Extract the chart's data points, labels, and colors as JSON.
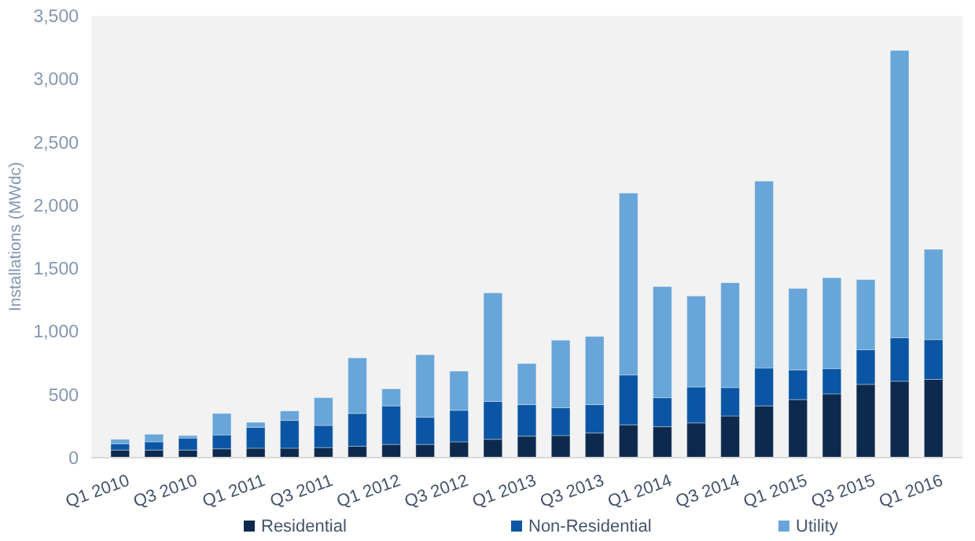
{
  "chart_data": {
    "type": "bar",
    "stacked": true,
    "ylabel": "Installations (MWdc)",
    "categories": [
      "Q1 2010",
      null,
      "Q3 2010",
      null,
      "Q1 2011",
      null,
      "Q3 2011",
      null,
      "Q1 2012",
      null,
      "Q3 2012",
      null,
      "Q1 2013",
      null,
      "Q3 2013",
      null,
      "Q1 2014",
      null,
      "Q3 2014",
      null,
      "Q1 2015",
      null,
      "Q3 2015",
      null,
      "Q1 2016"
    ],
    "series": [
      {
        "name": "Residential",
        "color": "#0d2a4e",
        "values": [
          60,
          60,
          60,
          70,
          75,
          75,
          80,
          90,
          105,
          105,
          125,
          145,
          170,
          175,
          195,
          260,
          245,
          275,
          330,
          410,
          460,
          505,
          580,
          605,
          620
        ]
      },
      {
        "name": "Non-Residential",
        "color": "#0b56a4",
        "values": [
          50,
          65,
          95,
          110,
          165,
          220,
          175,
          260,
          305,
          215,
          250,
          300,
          250,
          220,
          225,
          395,
          230,
          285,
          225,
          300,
          235,
          200,
          275,
          345,
          315
        ]
      },
      {
        "name": "Utility",
        "color": "#68a5d8",
        "values": [
          35,
          60,
          20,
          170,
          40,
          75,
          220,
          440,
          135,
          495,
          310,
          860,
          325,
          535,
          540,
          1440,
          880,
          720,
          830,
          1480,
          645,
          720,
          555,
          2275,
          715
        ]
      }
    ],
    "ylim": [
      0,
      3500
    ],
    "yticks": [
      {
        "value": 0,
        "label": "0"
      },
      {
        "value": 500,
        "label": "500"
      },
      {
        "value": 1000,
        "label": "1,000"
      },
      {
        "value": 1500,
        "label": "1,500"
      },
      {
        "value": 2000,
        "label": "2,000"
      },
      {
        "value": 2500,
        "label": "2,500"
      },
      {
        "value": 3000,
        "label": "3,000"
      },
      {
        "value": 3500,
        "label": "3,500"
      }
    ],
    "legend": "bottom"
  }
}
